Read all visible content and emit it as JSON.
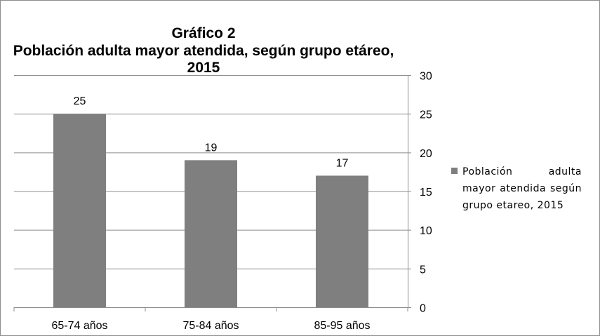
{
  "chart_data": {
    "type": "bar",
    "title_lines": [
      "Gráfico 2",
      "Población adulta mayor atendida, según grupo etáreo,",
      "2015"
    ],
    "categories": [
      "65-74 años",
      "75-84 años",
      "85-95 años"
    ],
    "series": [
      {
        "name": "Población adulta mayor atendida según grupo etareo, 2015",
        "values": [
          25,
          19,
          17
        ]
      }
    ],
    "ylim": [
      0,
      30
    ],
    "yticks": [
      0,
      5,
      10,
      15,
      20,
      25,
      30
    ],
    "y_axis_side": "right",
    "grid": true,
    "legend_position": "right",
    "bar_color": "#7f7f7f",
    "grid_color": "#8c8c8c",
    "xlabel": "",
    "ylabel": ""
  }
}
